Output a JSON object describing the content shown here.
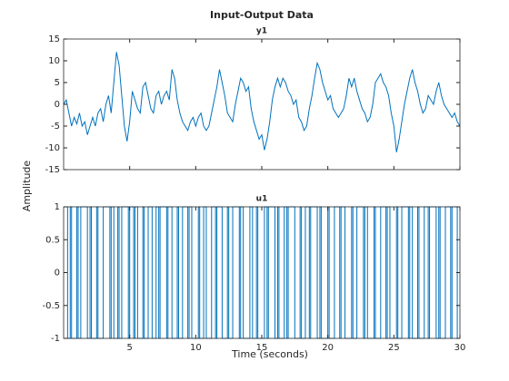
{
  "figure": {
    "title": "Input-Output Data",
    "xlabel": "Time (seconds)",
    "ylabel": "Amplitude"
  },
  "chart_data": [
    {
      "type": "line",
      "title": "y1",
      "color": "#0072bd",
      "xlim": [
        0,
        30
      ],
      "xticks": [
        5,
        10,
        15,
        20,
        25,
        30
      ],
      "ylim": [
        -15,
        15
      ],
      "yticks": [
        -15,
        -10,
        -5,
        0,
        5,
        10,
        15
      ],
      "x": [
        0,
        0.2,
        0.4,
        0.6,
        0.8,
        1,
        1.2,
        1.4,
        1.6,
        1.8,
        2,
        2.2,
        2.4,
        2.6,
        2.8,
        3,
        3.2,
        3.4,
        3.6,
        3.8,
        4,
        4.2,
        4.4,
        4.6,
        4.8,
        5,
        5.2,
        5.4,
        5.6,
        5.8,
        6,
        6.2,
        6.4,
        6.6,
        6.8,
        7,
        7.2,
        7.4,
        7.6,
        7.8,
        8,
        8.2,
        8.4,
        8.6,
        8.8,
        9,
        9.2,
        9.4,
        9.6,
        9.8,
        10,
        10.2,
        10.4,
        10.6,
        10.8,
        11,
        11.2,
        11.4,
        11.6,
        11.8,
        12,
        12.2,
        12.4,
        12.6,
        12.8,
        13,
        13.2,
        13.4,
        13.6,
        13.8,
        14,
        14.2,
        14.4,
        14.6,
        14.8,
        15,
        15.2,
        15.4,
        15.6,
        15.8,
        16,
        16.2,
        16.4,
        16.6,
        16.8,
        17,
        17.2,
        17.4,
        17.6,
        17.8,
        18,
        18.2,
        18.4,
        18.6,
        18.8,
        19,
        19.2,
        19.4,
        19.6,
        19.8,
        20,
        20.2,
        20.4,
        20.6,
        20.8,
        21,
        21.2,
        21.4,
        21.6,
        21.8,
        22,
        22.2,
        22.4,
        22.6,
        22.8,
        23,
        23.2,
        23.4,
        23.6,
        23.8,
        24,
        24.2,
        24.4,
        24.6,
        24.8,
        25,
        25.2,
        25.4,
        25.6,
        25.8,
        26,
        26.2,
        26.4,
        26.6,
        26.8,
        27,
        27.2,
        27.4,
        27.6,
        27.8,
        28,
        28.2,
        28.4,
        28.6,
        28.8,
        29,
        29.2,
        29.4,
        29.6,
        29.8,
        30
      ],
      "values": [
        0,
        1,
        -2,
        -5,
        -3,
        -4.5,
        -2,
        -5,
        -4,
        -7,
        -5,
        -3,
        -5,
        -2,
        -1,
        -4,
        0,
        2,
        -2,
        5,
        12,
        9,
        2,
        -5,
        -8.5,
        -4,
        3,
        1,
        -1,
        -2,
        4,
        5,
        2,
        -1,
        -2,
        2,
        3,
        0,
        2,
        3,
        1,
        8,
        6,
        1,
        -2,
        -4,
        -5,
        -6,
        -4,
        -3,
        -5,
        -3,
        -2,
        -5,
        -6,
        -5,
        -2,
        1,
        4,
        8,
        5,
        2,
        -2,
        -3,
        -4,
        0,
        3,
        6,
        5,
        3,
        4,
        -1,
        -4,
        -6,
        -8,
        -7,
        -10.5,
        -8,
        -4,
        1,
        4,
        6,
        4,
        6,
        5,
        3,
        2,
        0,
        1,
        -3,
        -4,
        -6,
        -5,
        -1,
        2,
        6,
        9.5,
        8,
        5,
        3,
        1,
        2,
        -1,
        -2,
        -3,
        -2,
        -1,
        2,
        6,
        4,
        6,
        3,
        1,
        -1,
        -2,
        -4,
        -3,
        0,
        5,
        6,
        7,
        5,
        4,
        2,
        -2,
        -5,
        -11,
        -8,
        -4,
        0,
        3,
        6,
        8,
        5,
        3,
        0,
        -2,
        -1,
        2,
        1,
        0,
        3,
        5,
        2,
        0,
        -1,
        -2,
        -3,
        -2,
        -4,
        -5
      ]
    },
    {
      "type": "stairs",
      "title": "u1",
      "color": "#0072bd",
      "xlim": [
        0,
        30
      ],
      "xticks": [
        5,
        10,
        15,
        20,
        25,
        30
      ],
      "ylim": [
        -1,
        1
      ],
      "yticks": [
        -1,
        -0.5,
        0,
        0.5,
        1
      ],
      "x": [
        0,
        0.3,
        0.5,
        0.6,
        1,
        1.1,
        1.3,
        1.8,
        2,
        2.1,
        2.5,
        2.6,
        3,
        3.5,
        3.6,
        3.8,
        4.1,
        4.2,
        4.4,
        4.9,
        5,
        5.3,
        5.4,
        5.6,
        6,
        6.1,
        6.4,
        6.7,
        7,
        7.2,
        7.3,
        7.8,
        7.9,
        8.2,
        8.6,
        8.7,
        9,
        9.4,
        9.5,
        9.7,
        10.2,
        10.3,
        10.6,
        10.8,
        11.2,
        11.5,
        11.6,
        12,
        12.4,
        12.5,
        12.8,
        13.3,
        13.4,
        13.6,
        14.1,
        14.3,
        14.6,
        14.7,
        15.2,
        15.4,
        15.5,
        16,
        16.2,
        16.3,
        16.7,
        16.9,
        17,
        17.5,
        17.9,
        18,
        18.3,
        18.6,
        18.7,
        19.2,
        19.4,
        19.5,
        20,
        20.1,
        20.5,
        20.9,
        21,
        21.3,
        21.8,
        21.9,
        22.2,
        22.7,
        22.8,
        23,
        23.5,
        23.6,
        24,
        24.4,
        24.5,
        24.7,
        25.2,
        25.3,
        25.6,
        26.1,
        26.2,
        26.4,
        26.8,
        26.9,
        27.3,
        27.6,
        27.7,
        28.2,
        28.4,
        28.5,
        28.9,
        29.3,
        29.4,
        29.8
      ],
      "values": [
        1,
        -1,
        1,
        -1,
        1,
        -1,
        1,
        -1,
        1,
        -1,
        1,
        -1,
        1,
        -1,
        1,
        -1,
        1,
        -1,
        1,
        -1,
        1,
        -1,
        1,
        -1,
        1,
        -1,
        1,
        -1,
        1,
        -1,
        1,
        -1,
        1,
        -1,
        1,
        -1,
        1,
        -1,
        1,
        -1,
        1,
        -1,
        1,
        -1,
        1,
        -1,
        1,
        -1,
        1,
        -1,
        1,
        -1,
        1,
        -1,
        1,
        -1,
        1,
        -1,
        1,
        -1,
        1,
        -1,
        1,
        -1,
        1,
        -1,
        1,
        -1,
        1,
        -1,
        1,
        -1,
        1,
        -1,
        1,
        -1,
        1,
        -1,
        1,
        -1,
        1,
        -1,
        1,
        -1,
        1,
        -1,
        1,
        -1,
        1,
        -1,
        1,
        -1,
        1,
        -1,
        1,
        -1,
        1,
        -1,
        1,
        -1,
        1,
        -1,
        1,
        -1,
        1,
        -1,
        1,
        -1,
        1,
        -1,
        1,
        -1
      ]
    }
  ]
}
